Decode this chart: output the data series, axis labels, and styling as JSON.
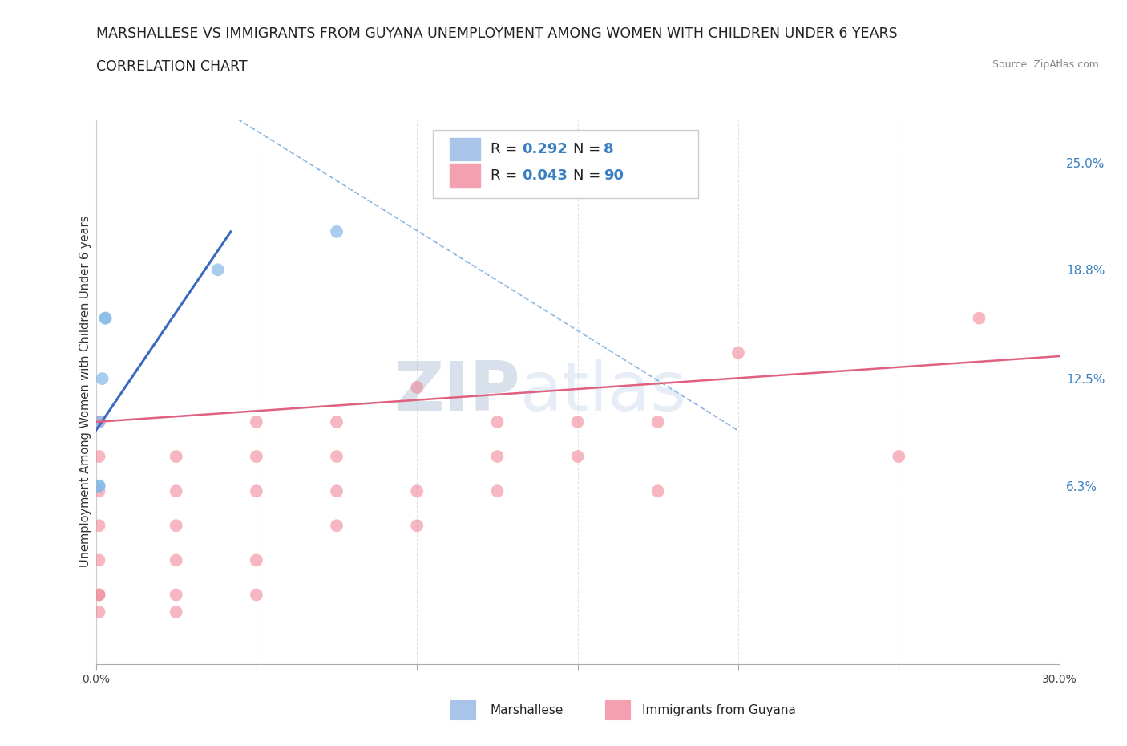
{
  "title_line1": "MARSHALLESE VS IMMIGRANTS FROM GUYANA UNEMPLOYMENT AMONG WOMEN WITH CHILDREN UNDER 6 YEARS",
  "title_line2": "CORRELATION CHART",
  "source_text": "Source: ZipAtlas.com",
  "ylabel": "Unemployment Among Women with Children Under 6 years",
  "xlim": [
    0.0,
    0.3
  ],
  "ylim": [
    -0.04,
    0.275
  ],
  "xticks": [
    0.0,
    0.05,
    0.1,
    0.15,
    0.2,
    0.25,
    0.3
  ],
  "xticklabels": [
    "0.0%",
    "",
    "",
    "",
    "",
    "",
    "30.0%"
  ],
  "ytick_right_labels": [
    "25.0%",
    "18.8%",
    "12.5%",
    "6.3%"
  ],
  "ytick_right_values": [
    0.25,
    0.188,
    0.125,
    0.063
  ],
  "watermark_zip": "ZIP",
  "watermark_atlas": "atlas",
  "marshallese_x": [
    0.001,
    0.001,
    0.001,
    0.002,
    0.003,
    0.003,
    0.038,
    0.075
  ],
  "marshallese_y": [
    0.063,
    0.063,
    0.1,
    0.125,
    0.16,
    0.16,
    0.188,
    0.21
  ],
  "marshallese_color": "#85b8e8",
  "marshallese_alpha": 0.7,
  "marshallese_size": 130,
  "guyana_x": [
    0.001,
    0.001,
    0.001,
    0.001,
    0.001,
    0.001,
    0.001,
    0.001,
    0.025,
    0.025,
    0.025,
    0.025,
    0.025,
    0.025,
    0.05,
    0.05,
    0.05,
    0.05,
    0.05,
    0.075,
    0.075,
    0.075,
    0.075,
    0.1,
    0.1,
    0.1,
    0.125,
    0.125,
    0.125,
    0.15,
    0.15,
    0.175,
    0.175,
    0.2,
    0.25,
    0.275
  ],
  "guyana_y": [
    -0.01,
    0.0,
    0.0,
    0.02,
    0.04,
    0.06,
    0.08,
    0.1,
    -0.01,
    0.0,
    0.02,
    0.04,
    0.06,
    0.08,
    0.0,
    0.02,
    0.06,
    0.08,
    0.1,
    0.04,
    0.06,
    0.08,
    0.1,
    0.04,
    0.06,
    0.12,
    0.06,
    0.08,
    0.1,
    0.08,
    0.1,
    0.06,
    0.1,
    0.14,
    0.08,
    0.16
  ],
  "guyana_color": "#f08898",
  "guyana_alpha": 0.6,
  "guyana_size": 130,
  "marshallese_line_color": "#3a6abf",
  "marshallese_line_x": [
    0.0,
    0.042
  ],
  "marshallese_line_y": [
    0.095,
    0.21
  ],
  "guyana_line_color": "#e06080",
  "guyana_line_x": [
    0.0,
    0.3
  ],
  "guyana_line_y": [
    0.1,
    0.138
  ],
  "dashed_line_color": "#90b8e0",
  "dashed_line_x": [
    0.04,
    0.2
  ],
  "dashed_line_y": [
    0.28,
    0.095
  ],
  "grid_color": "#e0e4e8",
  "background_color": "#ffffff",
  "title_fontsize": 12.5,
  "subtitle_fontsize": 12.5,
  "axis_label_fontsize": 10.5,
  "tick_fontsize": 10,
  "legend_fontsize": 13
}
